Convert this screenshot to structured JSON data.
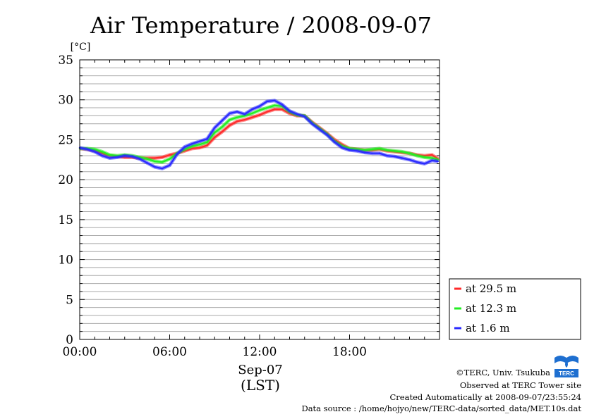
{
  "chart_data": {
    "type": "line",
    "title": "Air Temperature / 2008-09-07",
    "ylabel": "[°C]",
    "xlabel_date": "Sep-07",
    "xlabel_zone": "(LST)",
    "ylim": [
      0,
      35
    ],
    "yticks": [
      "0",
      "5",
      "10",
      "15",
      "20",
      "25",
      "30",
      "35"
    ],
    "xlim": [
      0,
      24
    ],
    "xticks": [
      {
        "h": 0,
        "label": "00:00"
      },
      {
        "h": 6,
        "label": "06:00"
      },
      {
        "h": 12,
        "label": "12:00"
      },
      {
        "h": 18,
        "label": "18:00"
      }
    ],
    "grid": true,
    "legend_position": "right-bottom",
    "series": [
      {
        "name": "at 29.5 m",
        "color": "#ff2a2a",
        "x": [
          0,
          0.5,
          1,
          1.5,
          2,
          2.5,
          3,
          3.5,
          4,
          4.5,
          5,
          5.5,
          6,
          6.5,
          7,
          7.5,
          8,
          8.5,
          9,
          9.5,
          10,
          10.5,
          11,
          11.5,
          12,
          12.5,
          13,
          13.5,
          14,
          14.5,
          15,
          15.5,
          16,
          16.5,
          17,
          17.5,
          18,
          18.5,
          19,
          19.5,
          20,
          20.5,
          21,
          21.5,
          22,
          22.5,
          23,
          23.5,
          23.9
        ],
        "y": [
          23.9,
          23.8,
          23.6,
          23.3,
          23.0,
          22.9,
          22.8,
          22.8,
          22.7,
          22.7,
          22.7,
          22.8,
          23.1,
          23.3,
          23.6,
          23.9,
          24.0,
          24.3,
          25.3,
          26.0,
          26.8,
          27.3,
          27.5,
          27.8,
          28.1,
          28.5,
          28.8,
          28.8,
          28.3,
          28.0,
          28.0,
          27.2,
          26.5,
          25.8,
          25.0,
          24.4,
          23.9,
          23.8,
          23.7,
          23.7,
          23.8,
          23.6,
          23.5,
          23.4,
          23.3,
          23.1,
          23.0,
          23.1,
          22.6
        ]
      },
      {
        "name": "at 12.3 m",
        "color": "#22ee22",
        "x": [
          0,
          0.5,
          1,
          1.5,
          2,
          2.5,
          3,
          3.5,
          4,
          4.5,
          5,
          5.5,
          6,
          6.5,
          7,
          7.5,
          8,
          8.5,
          9,
          9.5,
          10,
          10.5,
          11,
          11.5,
          12,
          12.5,
          13,
          13.5,
          14,
          14.5,
          15,
          15.5,
          16,
          16.5,
          17,
          17.5,
          18,
          18.5,
          19,
          19.5,
          20,
          20.5,
          21,
          21.5,
          22,
          22.5,
          23,
          23.5,
          23.9
        ],
        "y": [
          23.9,
          23.9,
          23.8,
          23.5,
          23.1,
          23.0,
          23.1,
          23.0,
          22.8,
          22.6,
          22.3,
          22.2,
          22.6,
          23.3,
          23.8,
          24.2,
          24.4,
          24.7,
          25.9,
          26.6,
          27.5,
          27.8,
          28.0,
          28.3,
          28.7,
          29.0,
          29.3,
          29.2,
          28.5,
          28.1,
          28.0,
          27.1,
          26.4,
          25.7,
          24.8,
          24.2,
          23.9,
          23.8,
          23.7,
          23.8,
          23.9,
          23.7,
          23.6,
          23.5,
          23.3,
          23.0,
          22.8,
          22.7,
          22.5
        ]
      },
      {
        "name": "at 1.6 m",
        "color": "#2a2aff",
        "x": [
          0,
          0.5,
          1,
          1.5,
          2,
          2.5,
          3,
          3.5,
          4,
          4.5,
          5,
          5.5,
          6,
          6.5,
          7,
          7.5,
          8,
          8.5,
          9,
          9.5,
          10,
          10.5,
          11,
          11.5,
          12,
          12.5,
          13,
          13.5,
          14,
          14.5,
          15,
          15.5,
          16,
          16.5,
          17,
          17.5,
          18,
          18.5,
          19,
          19.5,
          20,
          20.5,
          21,
          21.5,
          22,
          22.5,
          23,
          23.5,
          23.9
        ],
        "y": [
          24.0,
          23.8,
          23.5,
          23.0,
          22.7,
          22.8,
          23.0,
          22.9,
          22.6,
          22.1,
          21.6,
          21.4,
          21.8,
          23.2,
          24.1,
          24.5,
          24.8,
          25.1,
          26.5,
          27.4,
          28.3,
          28.5,
          28.2,
          28.8,
          29.2,
          29.8,
          29.9,
          29.4,
          28.6,
          28.2,
          27.9,
          27.0,
          26.3,
          25.6,
          24.7,
          24.0,
          23.7,
          23.6,
          23.4,
          23.3,
          23.3,
          23.0,
          22.9,
          22.7,
          22.5,
          22.2,
          22.0,
          22.4,
          22.3
        ]
      }
    ]
  },
  "credits": {
    "copyright": "©TERC, Univ. Tsukuba",
    "observed": "Observed at TERC Tower site",
    "created": "Created Automatically at 2008-09-07/23:55:24",
    "source": "Data source : /home/hojyo/new/TERC-data/sorted_data/MET.10s.dat"
  },
  "logo": {
    "text": "TERC",
    "color": "#1e6fd0"
  }
}
